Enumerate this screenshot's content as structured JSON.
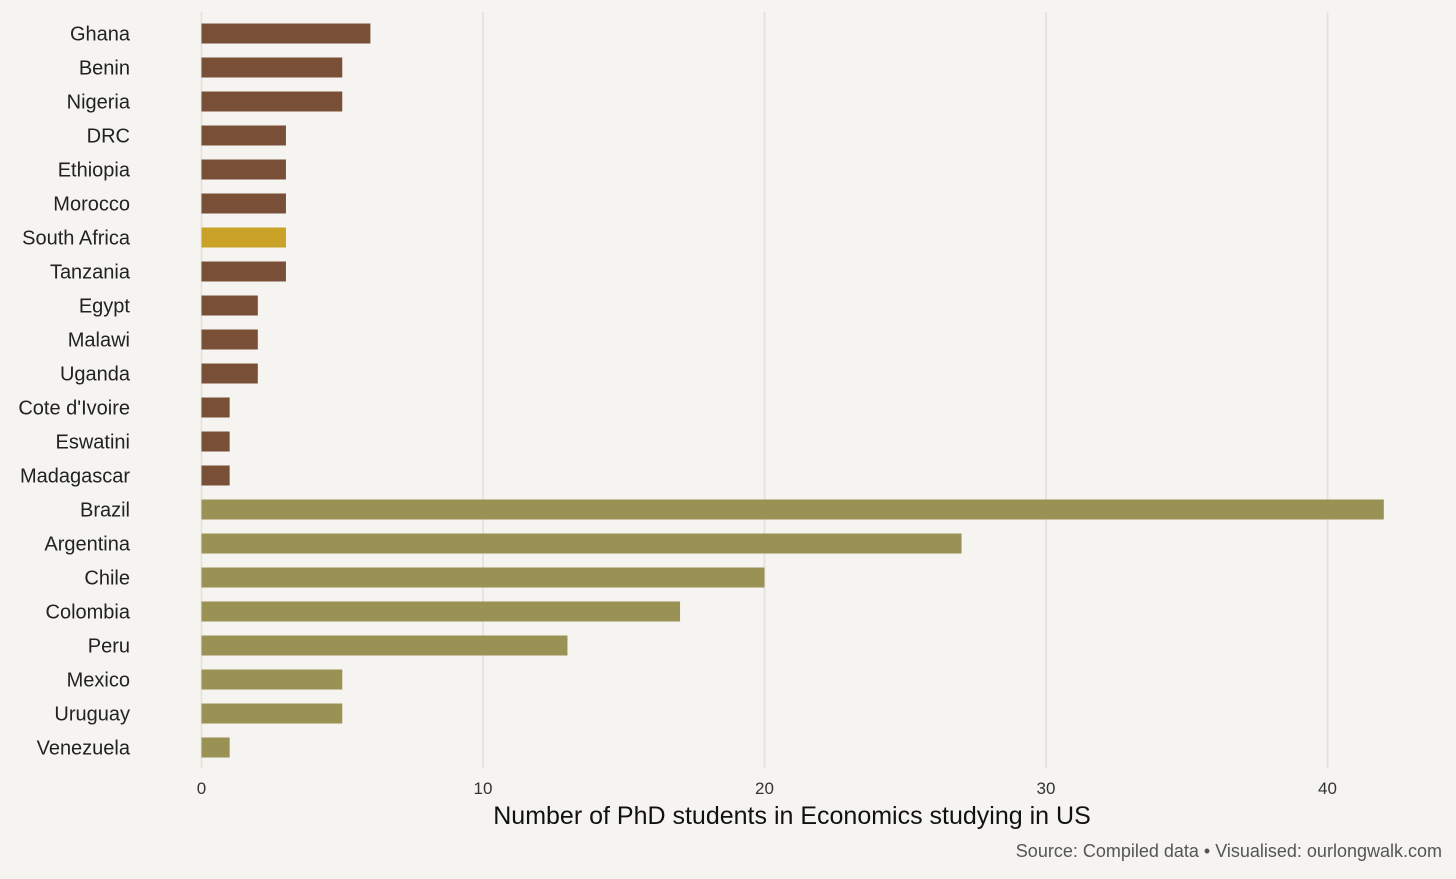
{
  "chart_data": {
    "type": "bar",
    "orientation": "horizontal",
    "categories": [
      "Ghana",
      "Benin",
      "Nigeria",
      "DRC",
      "Ethiopia",
      "Morocco",
      "South Africa",
      "Tanzania",
      "Egypt",
      "Malawi",
      "Uganda",
      "Cote d'Ivoire",
      "Eswatini",
      "Madagascar",
      "Brazil",
      "Argentina",
      "Chile",
      "Colombia",
      "Peru",
      "Mexico",
      "Uruguay",
      "Venezuela"
    ],
    "values": [
      6,
      5,
      5,
      3,
      3,
      3,
      3,
      3,
      2,
      2,
      2,
      1,
      1,
      1,
      42,
      27,
      20,
      17,
      13,
      5,
      5,
      1
    ],
    "bar_colors": [
      "#7a4f37",
      "#7a4f37",
      "#7a4f37",
      "#7a4f37",
      "#7a4f37",
      "#7a4f37",
      "#c9a227",
      "#7a4f37",
      "#7a4f37",
      "#7a4f37",
      "#7a4f37",
      "#7a4f37",
      "#7a4f37",
      "#7a4f37",
      "#9a9155",
      "#9a9155",
      "#9a9155",
      "#9a9155",
      "#9a9155",
      "#9a9155",
      "#9a9155",
      "#9a9155"
    ],
    "xlabel": "Number of PhD students in Economics studying in US",
    "ylabel": "",
    "xlim": [
      0,
      44.5
    ],
    "xticks": [
      0,
      10,
      20,
      30,
      40
    ],
    "xtick_labels": [
      "0",
      "10",
      "20",
      "30",
      "40"
    ],
    "grid": "vertical",
    "legend": "none",
    "caption": "Source: Compiled data • Visualised: ourlongwalk.com"
  },
  "colors": {
    "background": "#f5f4f0",
    "africa": "#7a4f37",
    "highlight": "#c9a227",
    "latin_america": "#9a9155",
    "grid": "#e6e4de"
  }
}
